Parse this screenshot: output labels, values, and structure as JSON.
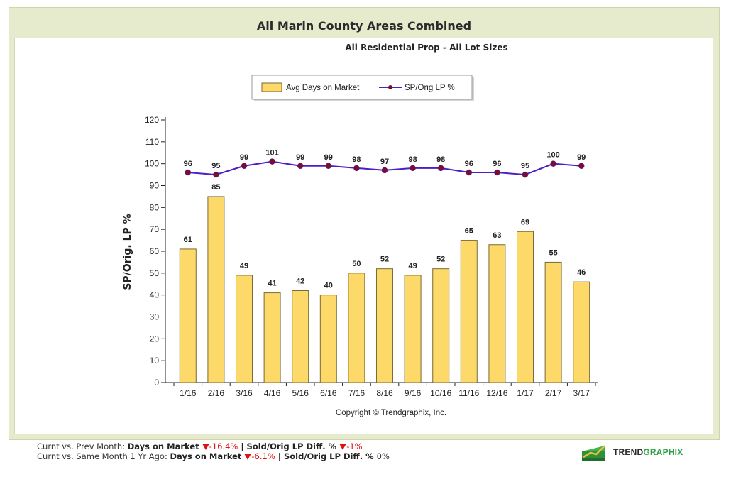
{
  "header": {
    "title": "All Marin County Areas Combined",
    "subtitle": "All Residential Prop - All Lot Sizes"
  },
  "chart_data": {
    "type": "bar",
    "categories": [
      "1/16",
      "2/16",
      "3/16",
      "4/16",
      "5/16",
      "6/16",
      "7/16",
      "8/16",
      "9/16",
      "10/16",
      "11/16",
      "12/16",
      "1/17",
      "2/17",
      "3/17"
    ],
    "series": [
      {
        "name": "Avg Days on Market",
        "type": "bar",
        "values": [
          61,
          85,
          49,
          41,
          42,
          40,
          50,
          52,
          49,
          52,
          65,
          63,
          69,
          55,
          46
        ]
      },
      {
        "name": "SP/Orig LP %",
        "type": "line",
        "values": [
          96,
          95,
          99,
          101,
          99,
          99,
          98,
          97,
          98,
          98,
          96,
          96,
          95,
          100,
          99
        ]
      }
    ],
    "ylabel": "SP/Orig. LP %",
    "xlabel": "",
    "ylim": [
      0,
      120
    ],
    "yticks": [
      0,
      10,
      20,
      30,
      40,
      50,
      60,
      70,
      80,
      90,
      100,
      110,
      120
    ],
    "legend_position": "top",
    "colors": {
      "bar": "#fdd96a",
      "bar_border": "#7a6a35",
      "line": "#4b1fc4",
      "marker": "#7a0f2a"
    },
    "annotation": "Copyright © Trendgraphix, Inc."
  },
  "footer": {
    "row1": {
      "prefix": "Curnt vs. Prev Month: ",
      "dom_label": "Days on Market ",
      "dom_value": "-16.4%",
      "sep": " | ",
      "lp_label": "Sold/Orig LP Diff. % ",
      "lp_value": "-1%"
    },
    "row2": {
      "prefix": "Curnt vs. Same Month 1 Yr Ago: ",
      "dom_label": "Days on Market ",
      "dom_value": "-6.1%",
      "sep": " | ",
      "lp_label": "Sold/Orig LP Diff. % ",
      "lp_value": "0%"
    }
  },
  "logo": {
    "part1": "TREND",
    "part2": "GRAPHIX"
  }
}
